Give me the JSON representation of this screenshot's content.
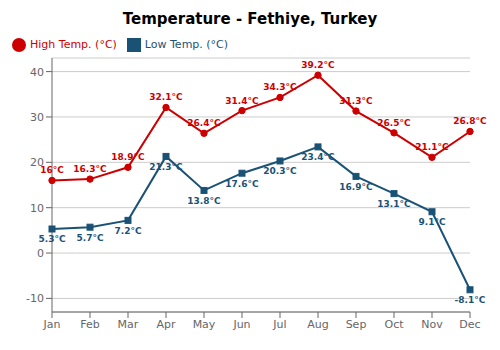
{
  "chart_data": {
    "type": "line",
    "title": "Temperature - Fethiye, Turkey",
    "categories": [
      "Jan",
      "Feb",
      "Mar",
      "Apr",
      "May",
      "Jun",
      "Jul",
      "Aug",
      "Sep",
      "Oct",
      "Nov",
      "Dec"
    ],
    "series": [
      {
        "name": "Low Temp. (°C)",
        "color": "#1a5276",
        "marker": "square",
        "values": [
          5.3,
          5.7,
          7.2,
          21.3,
          13.8,
          17.6,
          20.3,
          23.4,
          16.9,
          13.1,
          9.1,
          -8.1
        ],
        "value_labels": [
          "5.3°C",
          "5.7°C",
          "7.2°C",
          "21.3°C",
          "13.8°C",
          "17.6°C",
          "20.3°C",
          "23.4°C",
          "16.9°C",
          "13.1°C",
          "9.1°C",
          "-8.1°C"
        ]
      },
      {
        "name": "High Temp. (°C)",
        "color": "#cc0000",
        "marker": "circle",
        "values": [
          16.0,
          16.3,
          18.9,
          32.1,
          26.4,
          31.4,
          34.3,
          39.2,
          31.3,
          26.5,
          21.1,
          26.8
        ],
        "value_labels": [
          "16°C",
          "16.3°C",
          "18.9°C",
          "32.1°C",
          "26.4°C",
          "31.4°C",
          "34.3°C",
          "39.2°C",
          "31.3°C",
          "26.5°C",
          "21.1°C",
          "26.8°C"
        ]
      }
    ],
    "ylim": [
      -13,
      43
    ],
    "yticks": [
      -10,
      0,
      10,
      20,
      30,
      40
    ],
    "grid": true,
    "legend": "upper left",
    "data_labels": true
  }
}
